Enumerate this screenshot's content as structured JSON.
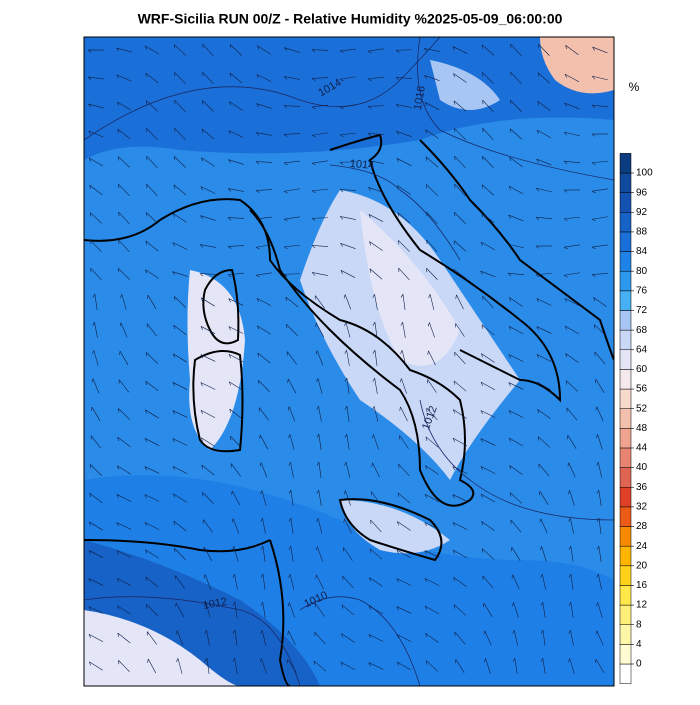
{
  "title": "WRF-Sicilia RUN 00/Z - Relative Humidity %2025-05-09_06:00:00",
  "colorbar": {
    "unit": "%",
    "ticks": [
      0,
      4,
      8,
      12,
      16,
      20,
      24,
      28,
      32,
      36,
      40,
      44,
      48,
      52,
      56,
      60,
      64,
      68,
      72,
      76,
      80,
      84,
      88,
      92,
      96,
      100
    ],
    "colors": [
      "#ffffff",
      "#fffbd2",
      "#fff6a8",
      "#fff07a",
      "#ffe84a",
      "#ffd21a",
      "#ffb400",
      "#f88a00",
      "#ec5a18",
      "#e04028",
      "#e06452",
      "#e88472",
      "#f0a490",
      "#f4c0ae",
      "#f8dacd",
      "#f6e9ee",
      "#e4e6f8",
      "#cad8f8",
      "#a8c6f4",
      "#46b0f2",
      "#2c98ee",
      "#1e82e6",
      "#1a70d8",
      "#1762c6",
      "#1452b2",
      "#104a9c",
      "#0c3c80"
    ]
  },
  "isobar_labels": [
    "1014",
    "1016",
    "1014",
    "1012",
    "1012",
    "1010"
  ]
}
